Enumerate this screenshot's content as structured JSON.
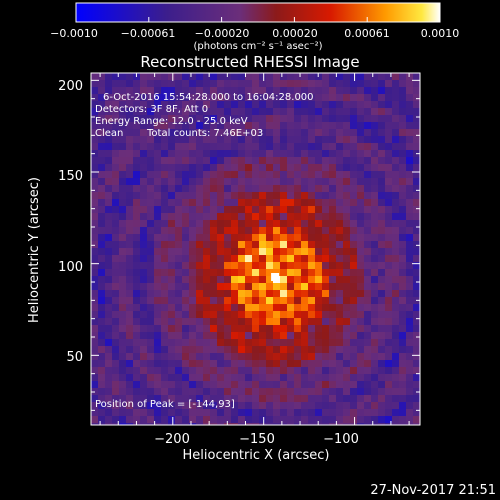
{
  "colorbar": {
    "ticks": [
      "−0.0010",
      "−0.00061",
      "−0.00020",
      "0.00020",
      "0.00061",
      "0.0010"
    ],
    "unit_text": "(photons cm⁻² s⁻¹ asec⁻²)"
  },
  "info": {
    "time_range": "6-Oct-2016 15:54:28.000 to 16:04:28.000",
    "detectors": "Detectors: 3F 8F, Att 0",
    "energy": "Energy Range: 12.0 - 25.0 keV",
    "clean": "Clean",
    "total_counts": "Total counts: 7.46E+03",
    "peak": "Position of Peak = [-144,93]"
  },
  "footer": {
    "timestamp": "27-Nov-2017 21:51"
  },
  "chart_data": {
    "type": "heatmap",
    "title": "Reconstructed RHESSI Image",
    "xlabel": "Heliocentric X (arcsec)",
    "ylabel": "Heliocentric Y (arcsec)",
    "xlim": [
      -245,
      -64
    ],
    "ylim": [
      12,
      204
    ],
    "x_ticks": [
      -200,
      -150,
      -100
    ],
    "x_tick_labels": [
      "−200",
      "−150",
      "−100"
    ],
    "y_ticks": [
      50,
      100,
      150,
      200
    ],
    "y_tick_labels": [
      "50",
      "100",
      "150",
      "200"
    ],
    "color_range": [
      -0.001,
      0.001
    ],
    "peak": [
      -144,
      93
    ],
    "colormap": [
      "#0000ff",
      "#3c1e8c",
      "#6b2e7a",
      "#8c1a1a",
      "#d81a00",
      "#ff7a00",
      "#ffd51a",
      "#ffffff"
    ]
  }
}
